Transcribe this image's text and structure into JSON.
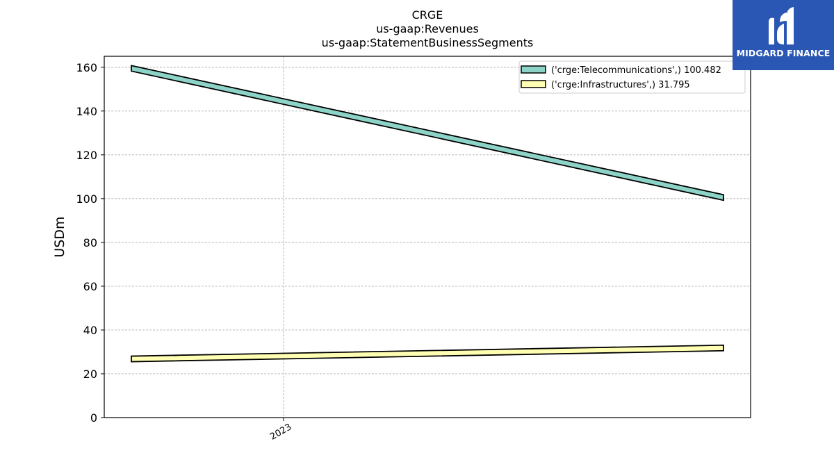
{
  "chart_data": {
    "type": "line",
    "title_lines": [
      "CRGE",
      "us-gaap:Revenues",
      "us-gaap:StatementBusinessSegments"
    ],
    "xlabel": "",
    "ylabel": "USDm",
    "x_ticks": [
      "2023"
    ],
    "ylim": [
      0,
      165
    ],
    "y_ticks": [
      0,
      20,
      40,
      60,
      80,
      100,
      120,
      140,
      160
    ],
    "grid": true,
    "legend_position": "top-right",
    "series": [
      {
        "name": "('crge:Telecommunications',) 100.482",
        "values": [
          159.5,
          100.5
        ],
        "color": "#8dd3c7"
      },
      {
        "name": "('crge:Infrastructures',) 31.795",
        "values": [
          26.8,
          31.8
        ],
        "color": "#ffffb3"
      }
    ]
  },
  "logo": {
    "text": "MIDGARD FINANCE",
    "color": "#2a57b3"
  }
}
